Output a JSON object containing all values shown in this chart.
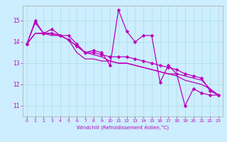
{
  "xlabel": "Windchill (Refroidissement éolien,°C)",
  "ylabel": "",
  "xlim": [
    -0.5,
    23.5
  ],
  "ylim": [
    10.5,
    15.7
  ],
  "yticks": [
    11,
    12,
    13,
    14,
    15
  ],
  "xticks": [
    0,
    1,
    2,
    3,
    4,
    5,
    6,
    7,
    8,
    9,
    10,
    11,
    12,
    13,
    14,
    15,
    16,
    17,
    18,
    19,
    20,
    21,
    22,
    23
  ],
  "bg_color": "#cceeff",
  "line_color": "#bb00bb",
  "series": [
    [
      13.9,
      15.0,
      14.4,
      14.6,
      14.3,
      14.3,
      13.9,
      13.5,
      13.6,
      13.5,
      12.9,
      15.5,
      14.5,
      14.0,
      14.3,
      14.3,
      12.1,
      12.9,
      12.5,
      11.0,
      11.8,
      11.6,
      11.5,
      11.5
    ],
    [
      13.9,
      14.9,
      14.4,
      14.4,
      14.3,
      14.1,
      13.8,
      13.5,
      13.5,
      13.4,
      13.3,
      13.3,
      13.3,
      13.2,
      13.1,
      13.0,
      12.9,
      12.8,
      12.7,
      12.5,
      12.4,
      12.3,
      11.7,
      11.5
    ],
    [
      13.9,
      14.4,
      14.4,
      14.3,
      14.3,
      14.1,
      13.8,
      13.5,
      13.4,
      13.3,
      13.1,
      13.0,
      13.0,
      12.9,
      12.8,
      12.7,
      12.6,
      12.5,
      12.5,
      12.4,
      12.3,
      12.2,
      11.8,
      11.5
    ],
    [
      13.9,
      14.4,
      14.4,
      14.4,
      14.3,
      14.1,
      13.5,
      13.2,
      13.2,
      13.1,
      13.1,
      13.0,
      13.0,
      12.9,
      12.8,
      12.7,
      12.6,
      12.5,
      12.4,
      12.2,
      12.1,
      12.0,
      11.8,
      11.5
    ]
  ],
  "markersize": 2.5,
  "linewidth": 0.9
}
